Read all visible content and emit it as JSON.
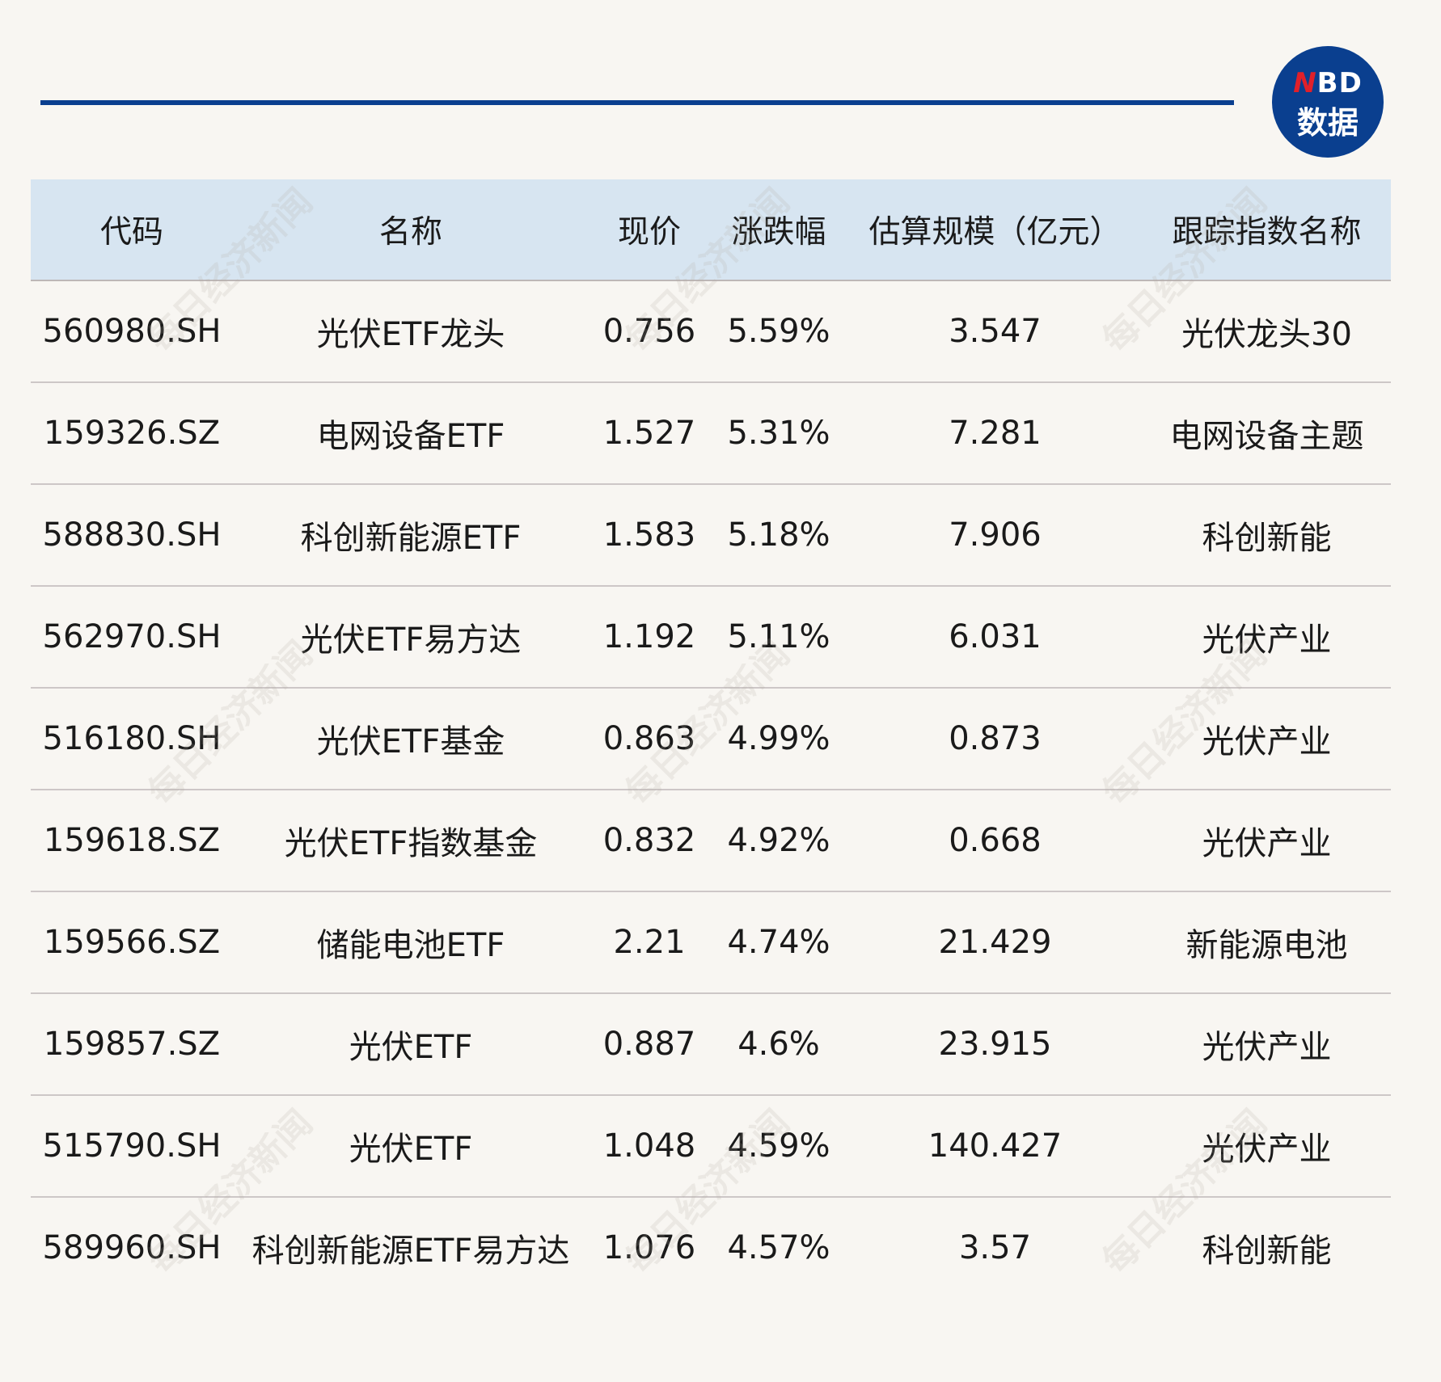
{
  "logo": {
    "line1_accent": "N",
    "line1_rest": "BD",
    "line2": "数据"
  },
  "watermark": "每日经济新闻",
  "table": {
    "headers": [
      "代码",
      "名称",
      "现价",
      "涨跌幅",
      "估算规模（亿元）",
      "跟踪指数名称"
    ],
    "rows": [
      [
        "560980.SH",
        "光伏ETF龙头",
        "0.756",
        "5.59%",
        "3.547",
        "光伏龙头30"
      ],
      [
        "159326.SZ",
        "电网设备ETF",
        "1.527",
        "5.31%",
        "7.281",
        "电网设备主题"
      ],
      [
        "588830.SH",
        "科创新能源ETF",
        "1.583",
        "5.18%",
        "7.906",
        "科创新能"
      ],
      [
        "562970.SH",
        "光伏ETF易方达",
        "1.192",
        "5.11%",
        "6.031",
        "光伏产业"
      ],
      [
        "516180.SH",
        "光伏ETF基金",
        "0.863",
        "4.99%",
        "0.873",
        "光伏产业"
      ],
      [
        "159618.SZ",
        "光伏ETF指数基金",
        "0.832",
        "4.92%",
        "0.668",
        "光伏产业"
      ],
      [
        "159566.SZ",
        "储能电池ETF",
        "2.21",
        "4.74%",
        "21.429",
        "新能源电池"
      ],
      [
        "159857.SZ",
        "光伏ETF",
        "0.887",
        "4.6%",
        "23.915",
        "光伏产业"
      ],
      [
        "515790.SH",
        "光伏ETF",
        "1.048",
        "4.59%",
        "140.427",
        "光伏产业"
      ],
      [
        "589960.SH",
        "科创新能源ETF易方达",
        "1.076",
        "4.57%",
        "3.57",
        "科创新能"
      ]
    ]
  },
  "colors": {
    "accent": "#0a3f8f",
    "header_bg": "#d7e5f1",
    "logo_red": "#e0202a"
  }
}
